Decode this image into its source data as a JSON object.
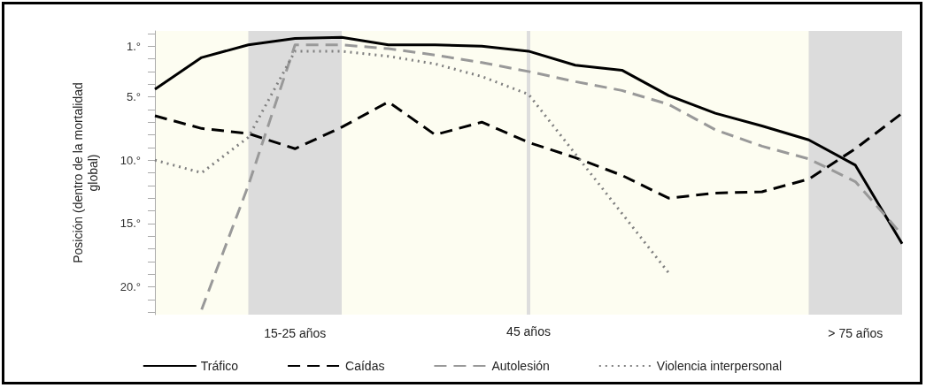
{
  "chart_data": {
    "type": "line",
    "ylabel": "Posición (dentro de la mortalidad global)",
    "categories": [
      null,
      null,
      null,
      null,
      null,
      null,
      null,
      null,
      null,
      null,
      null,
      null,
      null,
      null,
      null,
      null,
      null
    ],
    "ylim": [
      22.2,
      -0.2
    ],
    "yticks": [
      {
        "value": 0,
        "label": null
      },
      {
        "value": 1,
        "label": "1.°"
      },
      {
        "value": 2,
        "label": null
      },
      {
        "value": 3,
        "label": null
      },
      {
        "value": 4,
        "label": null
      },
      {
        "value": 5,
        "label": "5.°"
      },
      {
        "value": 6,
        "label": null
      },
      {
        "value": 7,
        "label": null
      },
      {
        "value": 8,
        "label": null
      },
      {
        "value": 9,
        "label": null
      },
      {
        "value": 10,
        "label": "10.°"
      },
      {
        "value": 11,
        "label": null
      },
      {
        "value": 12,
        "label": null
      },
      {
        "value": 13,
        "label": null
      },
      {
        "value": 14,
        "label": null
      },
      {
        "value": 15,
        "label": "15.°"
      },
      {
        "value": 16,
        "label": null
      },
      {
        "value": 17,
        "label": null
      },
      {
        "value": 18,
        "label": null
      },
      {
        "value": 19,
        "label": null
      },
      {
        "value": 20,
        "label": "20.°"
      },
      {
        "value": 21,
        "label": null
      },
      {
        "value": 22,
        "label": null
      }
    ],
    "grid": false,
    "legend": "bottom",
    "marker": "none",
    "series": [
      {
        "name": "Tráfico",
        "color": "#000000",
        "line_style": "solid",
        "values": [
          4.4,
          1.9,
          0.9,
          0.4,
          0.3,
          0.9,
          0.9,
          1.0,
          1.4,
          2.5,
          2.9,
          4.9,
          6.3,
          7.3,
          8.4,
          10.4,
          16.6
        ]
      },
      {
        "name": "Caídas",
        "color": "#000000",
        "line_style": "dashed",
        "values": [
          6.5,
          7.5,
          7.9,
          9.1,
          7.4,
          5.4,
          8.0,
          7.0,
          8.6,
          9.8,
          11.2,
          13.0,
          12.6,
          12.5,
          11.5,
          9.1,
          6.3
        ]
      },
      {
        "name": "Autolesión",
        "color": "#999999",
        "line_style": "dashed",
        "values": [
          null,
          21.8,
          12.0,
          0.9,
          0.9,
          1.2,
          1.7,
          2.3,
          3.0,
          3.8,
          4.5,
          5.6,
          7.6,
          8.9,
          9.9,
          11.7,
          15.9
        ]
      },
      {
        "name": "Violencia interpersonal",
        "color": "#808080",
        "line_style": "dotted",
        "values": [
          10.0,
          11.0,
          8.2,
          1.4,
          1.4,
          1.8,
          2.4,
          3.4,
          4.8,
          9.5,
          14.2,
          18.9,
          null,
          null,
          null,
          null,
          null
        ]
      }
    ],
    "annotations": [
      "15-25 años",
      "45 años",
      "> 75 años"
    ]
  }
}
